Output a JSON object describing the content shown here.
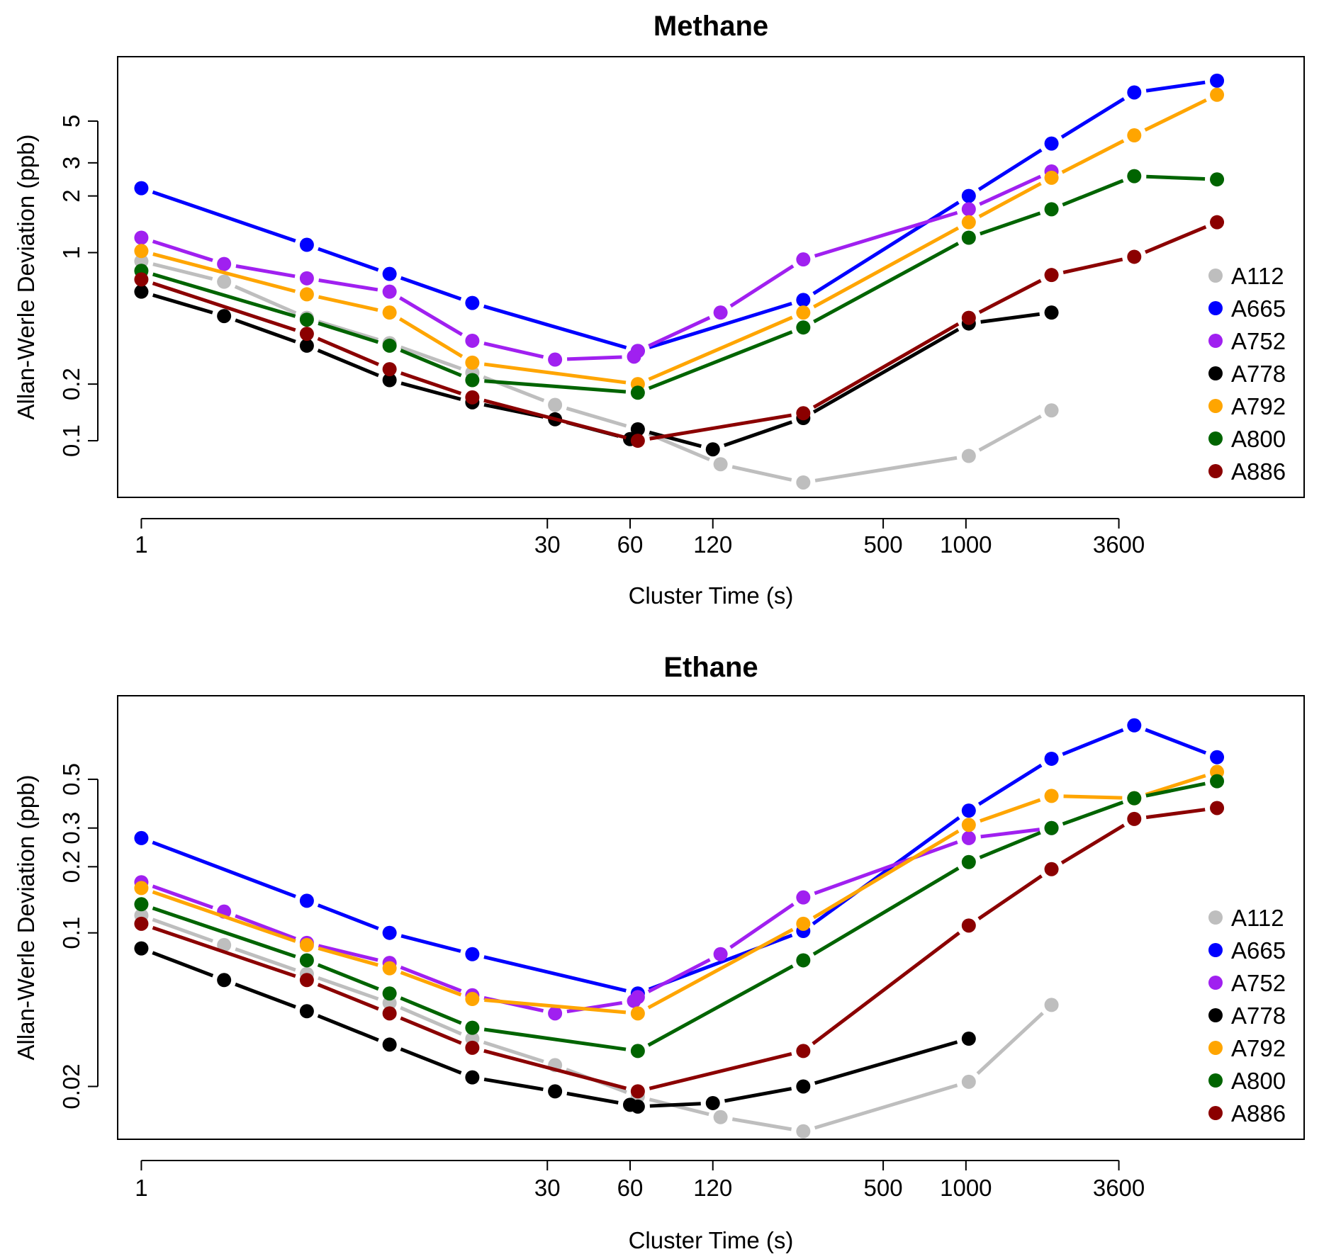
{
  "chart_data": [
    {
      "type": "line",
      "title": "Methane",
      "xlabel": "Cluster Time (s)",
      "ylabel": "Allan-Werle Deviation (ppb)",
      "x_scale": "log",
      "y_scale": "log",
      "xlim": [
        0.82,
        17000
      ],
      "ylim": [
        0.05,
        11
      ],
      "x_ticks": [
        1,
        30,
        60,
        120,
        500,
        1000,
        3600
      ],
      "x_tick_labels": [
        "1",
        "30",
        "60",
        "120",
        "500",
        "1000",
        "3600"
      ],
      "y_ticks": [
        0.1,
        0.2,
        1,
        2,
        3,
        5
      ],
      "y_tick_labels": [
        "0.1",
        "0.2",
        "1",
        "2",
        "3",
        "5"
      ],
      "legend_position": "bottom-right",
      "series": [
        {
          "name": "A112",
          "color": "#bebebe",
          "x": [
            1,
            2,
            4,
            8,
            16,
            32,
            64,
            128,
            256,
            1024,
            2048
          ],
          "y": [
            0.9,
            0.7,
            0.45,
            0.33,
            0.23,
            0.155,
            0.115,
            0.075,
            0.06,
            0.083,
            0.145
          ]
        },
        {
          "name": "A665",
          "color": "#0000ff",
          "x": [
            1,
            4,
            8,
            16,
            64,
            256,
            1024,
            2048,
            4096,
            8192
          ],
          "y": [
            2.2,
            1.1,
            0.77,
            0.54,
            0.3,
            0.56,
            2.0,
            3.8,
            7.1,
            8.2
          ]
        },
        {
          "name": "A752",
          "color": "#a020f0",
          "x": [
            1,
            2,
            4,
            8,
            16,
            32,
            62,
            64,
            128,
            256,
            1024,
            2048
          ],
          "y": [
            1.2,
            0.87,
            0.73,
            0.62,
            0.34,
            0.27,
            0.28,
            0.3,
            0.48,
            0.92,
            1.7,
            2.7
          ]
        },
        {
          "name": "A778",
          "color": "#000000",
          "x": [
            1,
            2,
            4,
            8,
            16,
            32,
            60,
            64,
            120,
            256,
            1024,
            2048
          ],
          "y": [
            0.62,
            0.46,
            0.32,
            0.21,
            0.16,
            0.13,
            0.102,
            0.115,
            0.09,
            0.132,
            0.42,
            0.48
          ]
        },
        {
          "name": "A792",
          "color": "#ffa500",
          "x": [
            1,
            4,
            8,
            16,
            64,
            256,
            1024,
            2048,
            4096,
            8192
          ],
          "y": [
            1.02,
            0.6,
            0.48,
            0.26,
            0.2,
            0.48,
            1.45,
            2.5,
            4.2,
            6.9
          ]
        },
        {
          "name": "A800",
          "color": "#006400",
          "x": [
            1,
            4,
            8,
            16,
            64,
            256,
            1024,
            2048,
            4096,
            8192
          ],
          "y": [
            0.8,
            0.44,
            0.32,
            0.21,
            0.18,
            0.4,
            1.2,
            1.7,
            2.55,
            2.45
          ]
        },
        {
          "name": "A886",
          "color": "#8b0000",
          "x": [
            1,
            4,
            8,
            16,
            64,
            256,
            1024,
            2048,
            4096,
            8192
          ],
          "y": [
            0.72,
            0.37,
            0.24,
            0.17,
            0.1,
            0.14,
            0.45,
            0.76,
            0.95,
            1.45
          ]
        }
      ]
    },
    {
      "type": "line",
      "title": "Ethane",
      "xlabel": "Cluster Time (s)",
      "ylabel": "Allan-Werle Deviation (ppb)",
      "x_scale": "log",
      "y_scale": "log",
      "xlim": [
        0.82,
        17000
      ],
      "ylim": [
        0.0115,
        1.2
      ],
      "x_ticks": [
        1,
        30,
        60,
        120,
        500,
        1000,
        3600
      ],
      "x_tick_labels": [
        "1",
        "30",
        "60",
        "120",
        "500",
        "1000",
        "3600"
      ],
      "y_ticks": [
        0.02,
        0.1,
        0.2,
        0.3,
        0.5
      ],
      "y_tick_labels": [
        "0.02",
        "0.1",
        "0.2",
        "0.3",
        "0.5"
      ],
      "legend_position": "bottom-right",
      "series": [
        {
          "name": "A112",
          "color": "#bebebe",
          "x": [
            1,
            2,
            4,
            8,
            16,
            32,
            64,
            128,
            256,
            1024,
            2048
          ],
          "y": [
            0.12,
            0.088,
            0.065,
            0.048,
            0.033,
            0.025,
            0.018,
            0.0145,
            0.0125,
            0.021,
            0.047
          ]
        },
        {
          "name": "A665",
          "color": "#0000ff",
          "x": [
            1,
            4,
            8,
            16,
            64,
            256,
            1024,
            2048,
            4096,
            8192
          ],
          "y": [
            0.27,
            0.14,
            0.1,
            0.08,
            0.053,
            0.102,
            0.36,
            0.62,
            0.88,
            0.63
          ]
        },
        {
          "name": "A752",
          "color": "#a020f0",
          "x": [
            1,
            2,
            4,
            8,
            16,
            32,
            62,
            64,
            128,
            256,
            1024,
            2048
          ],
          "y": [
            0.17,
            0.125,
            0.09,
            0.073,
            0.052,
            0.043,
            0.049,
            0.051,
            0.08,
            0.145,
            0.27,
            0.3
          ]
        },
        {
          "name": "A778",
          "color": "#000000",
          "x": [
            1,
            2,
            4,
            8,
            16,
            32,
            60,
            64,
            120,
            256,
            1024
          ],
          "y": [
            0.085,
            0.061,
            0.044,
            0.031,
            0.022,
            0.019,
            0.0165,
            0.0162,
            0.0168,
            0.02,
            0.033
          ]
        },
        {
          "name": "A792",
          "color": "#ffa500",
          "x": [
            1,
            4,
            8,
            16,
            64,
            256,
            1024,
            2048,
            4096,
            8192
          ],
          "y": [
            0.16,
            0.088,
            0.069,
            0.05,
            0.043,
            0.11,
            0.31,
            0.42,
            0.41,
            0.54
          ]
        },
        {
          "name": "A800",
          "color": "#006400",
          "x": [
            1,
            4,
            8,
            16,
            64,
            256,
            1024,
            2048,
            4096,
            8192
          ],
          "y": [
            0.135,
            0.075,
            0.053,
            0.037,
            0.029,
            0.075,
            0.21,
            0.3,
            0.41,
            0.49
          ]
        },
        {
          "name": "A886",
          "color": "#8b0000",
          "x": [
            1,
            4,
            8,
            16,
            64,
            256,
            1024,
            2048,
            4096,
            8192
          ],
          "y": [
            0.11,
            0.061,
            0.043,
            0.03,
            0.019,
            0.029,
            0.108,
            0.195,
            0.33,
            0.37
          ]
        }
      ]
    }
  ]
}
